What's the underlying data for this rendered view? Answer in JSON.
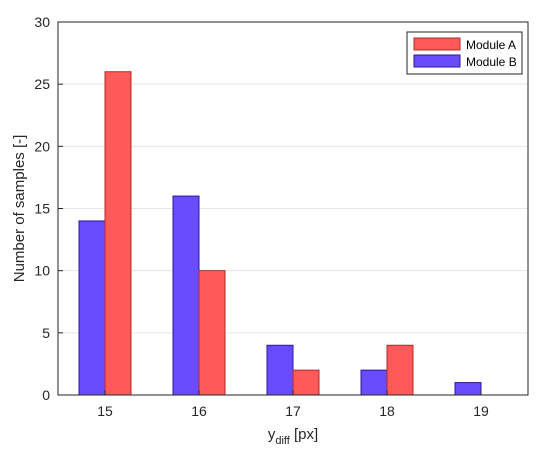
{
  "chart_data": {
    "type": "bar",
    "categories": [
      "15",
      "16",
      "17",
      "18",
      "19"
    ],
    "series": [
      {
        "name": "Module A",
        "values": [
          26,
          10,
          2,
          4,
          0
        ],
        "color": "#ff5a5a",
        "edge": "#b52a2a"
      },
      {
        "name": "Module B",
        "values": [
          14,
          16,
          4,
          2,
          1
        ],
        "color": "#6a4cff",
        "edge": "#2a1a9a"
      }
    ],
    "title": "",
    "xlabel_main": "y",
    "xlabel_sub": "diff",
    "xlabel_unit": " [px]",
    "ylabel": "Number of samples [-]",
    "ylim": [
      0,
      30
    ],
    "yticks": [
      "0",
      "5",
      "10",
      "15",
      "20",
      "25",
      "30"
    ],
    "grid": "horizontal",
    "legend_position": "top-right"
  }
}
